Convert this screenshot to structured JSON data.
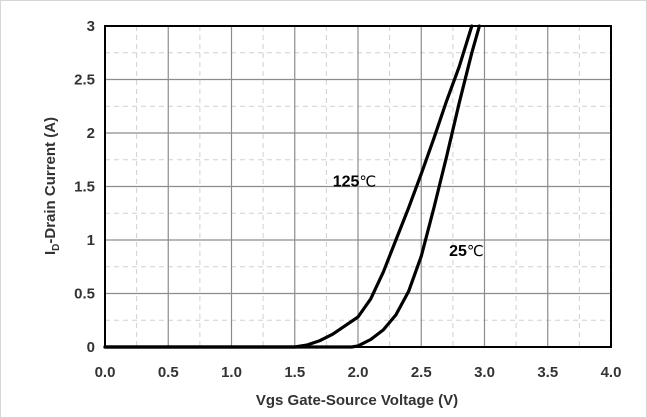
{
  "chart_data": {
    "type": "line",
    "xlabel": "Vgs Gate-Source Voltage (V)",
    "ylabel": {
      "prefix": "I",
      "subscript": "D",
      "suffix": "-Drain Current (A)"
    },
    "xlim": [
      0,
      4
    ],
    "ylim": [
      0,
      3
    ],
    "x_ticks": [
      "0.0",
      "0.5",
      "1.0",
      "1.5",
      "2.0",
      "2.5",
      "3.0",
      "3.5",
      "4.0"
    ],
    "y_ticks": [
      "0",
      "0.5",
      "1",
      "1.5",
      "2",
      "2.5",
      "3"
    ],
    "x_tick_values": [
      0,
      0.5,
      1.0,
      1.5,
      2.0,
      2.5,
      3.0,
      3.5,
      4.0
    ],
    "y_tick_values": [
      0,
      0.5,
      1,
      1.5,
      2,
      2.5,
      3
    ],
    "grid": true,
    "series": [
      {
        "name": "125",
        "unit": "℃",
        "points": [
          [
            0,
            0
          ],
          [
            1.5,
            0
          ],
          [
            1.6,
            0.02
          ],
          [
            1.7,
            0.06
          ],
          [
            1.8,
            0.12
          ],
          [
            1.9,
            0.2
          ],
          [
            2.0,
            0.28
          ],
          [
            2.1,
            0.45
          ],
          [
            2.2,
            0.7
          ],
          [
            2.3,
            1.0
          ],
          [
            2.4,
            1.3
          ],
          [
            2.5,
            1.62
          ],
          [
            2.6,
            1.95
          ],
          [
            2.7,
            2.3
          ],
          [
            2.8,
            2.62
          ],
          [
            2.9,
            3.0
          ]
        ]
      },
      {
        "name": "25",
        "unit": "℃",
        "points": [
          [
            0,
            0
          ],
          [
            1.95,
            0
          ],
          [
            2.0,
            0.01
          ],
          [
            2.1,
            0.07
          ],
          [
            2.2,
            0.16
          ],
          [
            2.3,
            0.3
          ],
          [
            2.4,
            0.52
          ],
          [
            2.5,
            0.85
          ],
          [
            2.6,
            1.3
          ],
          [
            2.7,
            1.78
          ],
          [
            2.8,
            2.28
          ],
          [
            2.9,
            2.75
          ],
          [
            2.96,
            3.0
          ]
        ]
      }
    ],
    "annotations": [
      {
        "text": "125",
        "unit": "℃",
        "x": 1.8,
        "y": 1.5
      },
      {
        "text": "25",
        "unit": "℃",
        "x": 2.72,
        "y": 0.85
      }
    ]
  }
}
